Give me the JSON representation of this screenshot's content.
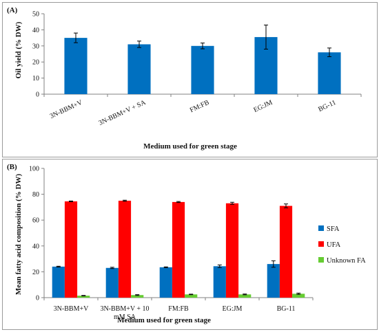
{
  "chart_data": [
    {
      "type": "bar",
      "panel_label": "(A)",
      "title": "",
      "xlabel": "Medium used for green stage",
      "ylabel": "Oil yield (% DW)",
      "ylim": [
        0,
        50
      ],
      "yticks": [
        0,
        10,
        20,
        30,
        40,
        50
      ],
      "grid": false,
      "categories": [
        {
          "line1": "3N-BBM+V",
          "line2": ""
        },
        {
          "line1": "3N-BBM+V + SA",
          "line2": ""
        },
        {
          "line1": "FM:FB",
          "line2": ""
        },
        {
          "line1": "EG:JM",
          "line2": ""
        },
        {
          "line1": "BG-11",
          "line2": ""
        }
      ],
      "series": [
        {
          "name": "",
          "color": "#0070c0",
          "values": [
            35.0,
            31.0,
            30.0,
            35.5,
            26.0
          ],
          "errors": [
            3.0,
            2.0,
            1.8,
            7.5,
            2.7
          ]
        }
      ]
    },
    {
      "type": "bar",
      "panel_label": "(B)",
      "title": "",
      "xlabel": "Medium used for green stage",
      "ylabel": "Mean fatty acid composition (% DW)",
      "ylim": [
        0,
        100
      ],
      "yticks": [
        0,
        20,
        40,
        60,
        80,
        100
      ],
      "grid": false,
      "legend_position": "right",
      "categories": [
        {
          "line1": "3N-BBM+V",
          "line2": ""
        },
        {
          "line1": "3N-BBM+V + 10",
          "line2": "mM SA"
        },
        {
          "line1": "FM:FB",
          "line2": ""
        },
        {
          "line1": "EG:JM",
          "line2": ""
        },
        {
          "line1": "BG-11",
          "line2": ""
        }
      ],
      "series": [
        {
          "name": "SFA",
          "color": "#0070c0",
          "values": [
            24.0,
            23.0,
            23.5,
            24.3,
            26.0
          ],
          "errors": [
            0.3,
            0.5,
            0.3,
            1.0,
            2.5
          ]
        },
        {
          "name": "UFA",
          "color": "#ff0000",
          "values": [
            74.5,
            75.0,
            74.0,
            73.0,
            71.0
          ],
          "errors": [
            0.3,
            0.4,
            0.4,
            0.8,
            1.5
          ]
        },
        {
          "name": "Unknown FA",
          "color": "#66cc33",
          "values": [
            1.5,
            2.0,
            2.5,
            2.5,
            3.0
          ],
          "errors": [
            0.2,
            0.3,
            0.2,
            0.3,
            0.5
          ]
        }
      ]
    }
  ]
}
